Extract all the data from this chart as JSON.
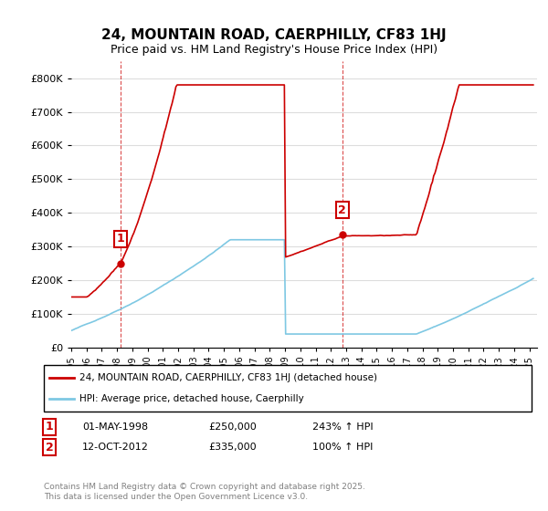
{
  "title1": "24, MOUNTAIN ROAD, CAERPHILLY, CF83 1HJ",
  "title2": "Price paid vs. HM Land Registry's House Price Index (HPI)",
  "ylabel": "",
  "ylim": [
    0,
    850000
  ],
  "yticks": [
    0,
    100000,
    200000,
    300000,
    400000,
    500000,
    600000,
    700000,
    800000
  ],
  "ytick_labels": [
    "£0",
    "£100K",
    "£200K",
    "£300K",
    "£400K",
    "£500K",
    "£600K",
    "£700K",
    "£800K"
  ],
  "hpi_color": "#7ec8e3",
  "price_color": "#cc0000",
  "marker1_date_idx": 36,
  "marker1_label": "1",
  "marker1_price": 250000,
  "marker2_label": "2",
  "marker2_price": 335000,
  "legend_line1": "24, MOUNTAIN ROAD, CAERPHILLY, CF83 1HJ (detached house)",
  "legend_line2": "HPI: Average price, detached house, Caerphilly",
  "ann1_text": "1     01-MAY-1998          £250,000          243% ↑ HPI",
  "ann2_text": "2     12-OCT-2012          £335,000          100% ↑ HPI",
  "footer": "Contains HM Land Registry data © Crown copyright and database right 2025.\nThis data is licensed under the Open Government Licence v3.0.",
  "background_color": "#ffffff",
  "grid_color": "#dddddd"
}
